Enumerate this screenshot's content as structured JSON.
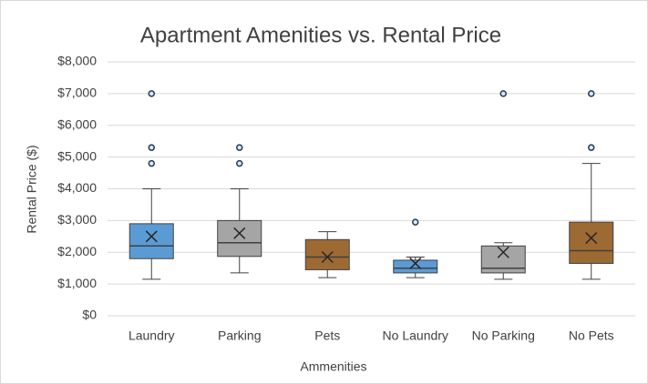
{
  "chart_data": {
    "type": "box",
    "title": "Apartment Amenities vs. Rental Price",
    "x_label": "Ammenities",
    "y_label": "Rental Price ($)",
    "categories": [
      "Laundry",
      "Parking",
      "Pets",
      "No Laundry",
      "No Parking",
      "No Pets"
    ],
    "boxes": [
      {
        "min": 1150,
        "q1": 1800,
        "median": 2200,
        "q3": 2900,
        "max": 4000,
        "mean": 2500,
        "outliers": [
          4800,
          5300,
          7000
        ],
        "color": "#5b9bd5"
      },
      {
        "min": 1350,
        "q1": 1870,
        "median": 2300,
        "q3": 3000,
        "max": 4000,
        "mean": 2600,
        "outliers": [
          4800,
          5300
        ],
        "color": "#a5a5a5"
      },
      {
        "min": 1200,
        "q1": 1450,
        "median": 1850,
        "q3": 2400,
        "max": 2650,
        "mean": 1850,
        "outliers": [],
        "color": "#9e6a33"
      },
      {
        "min": 1200,
        "q1": 1350,
        "median": 1500,
        "q3": 1750,
        "max": 1850,
        "mean": 1650,
        "outliers": [
          2950
        ],
        "color": "#5b9bd5"
      },
      {
        "min": 1150,
        "q1": 1350,
        "median": 1500,
        "q3": 2200,
        "max": 2300,
        "mean": 2000,
        "outliers": [
          7000
        ],
        "color": "#a5a5a5"
      },
      {
        "min": 1150,
        "q1": 1650,
        "median": 2050,
        "q3": 2950,
        "max": 4800,
        "mean": 2450,
        "outliers": [
          5300,
          7000
        ],
        "color": "#9e6a33"
      }
    ],
    "ylim": [
      0,
      8000
    ],
    "yticks": [
      {
        "value": 0,
        "label": "$0"
      },
      {
        "value": 1000,
        "label": "$1,000"
      },
      {
        "value": 2000,
        "label": "$2,000"
      },
      {
        "value": 3000,
        "label": "$3,000"
      },
      {
        "value": 4000,
        "label": "$4,000"
      },
      {
        "value": 5000,
        "label": "$5,000"
      },
      {
        "value": 6000,
        "label": "$6,000"
      },
      {
        "value": 7000,
        "label": "$7,000"
      },
      {
        "value": 8000,
        "label": "$8,000"
      }
    ],
    "grid": true
  }
}
